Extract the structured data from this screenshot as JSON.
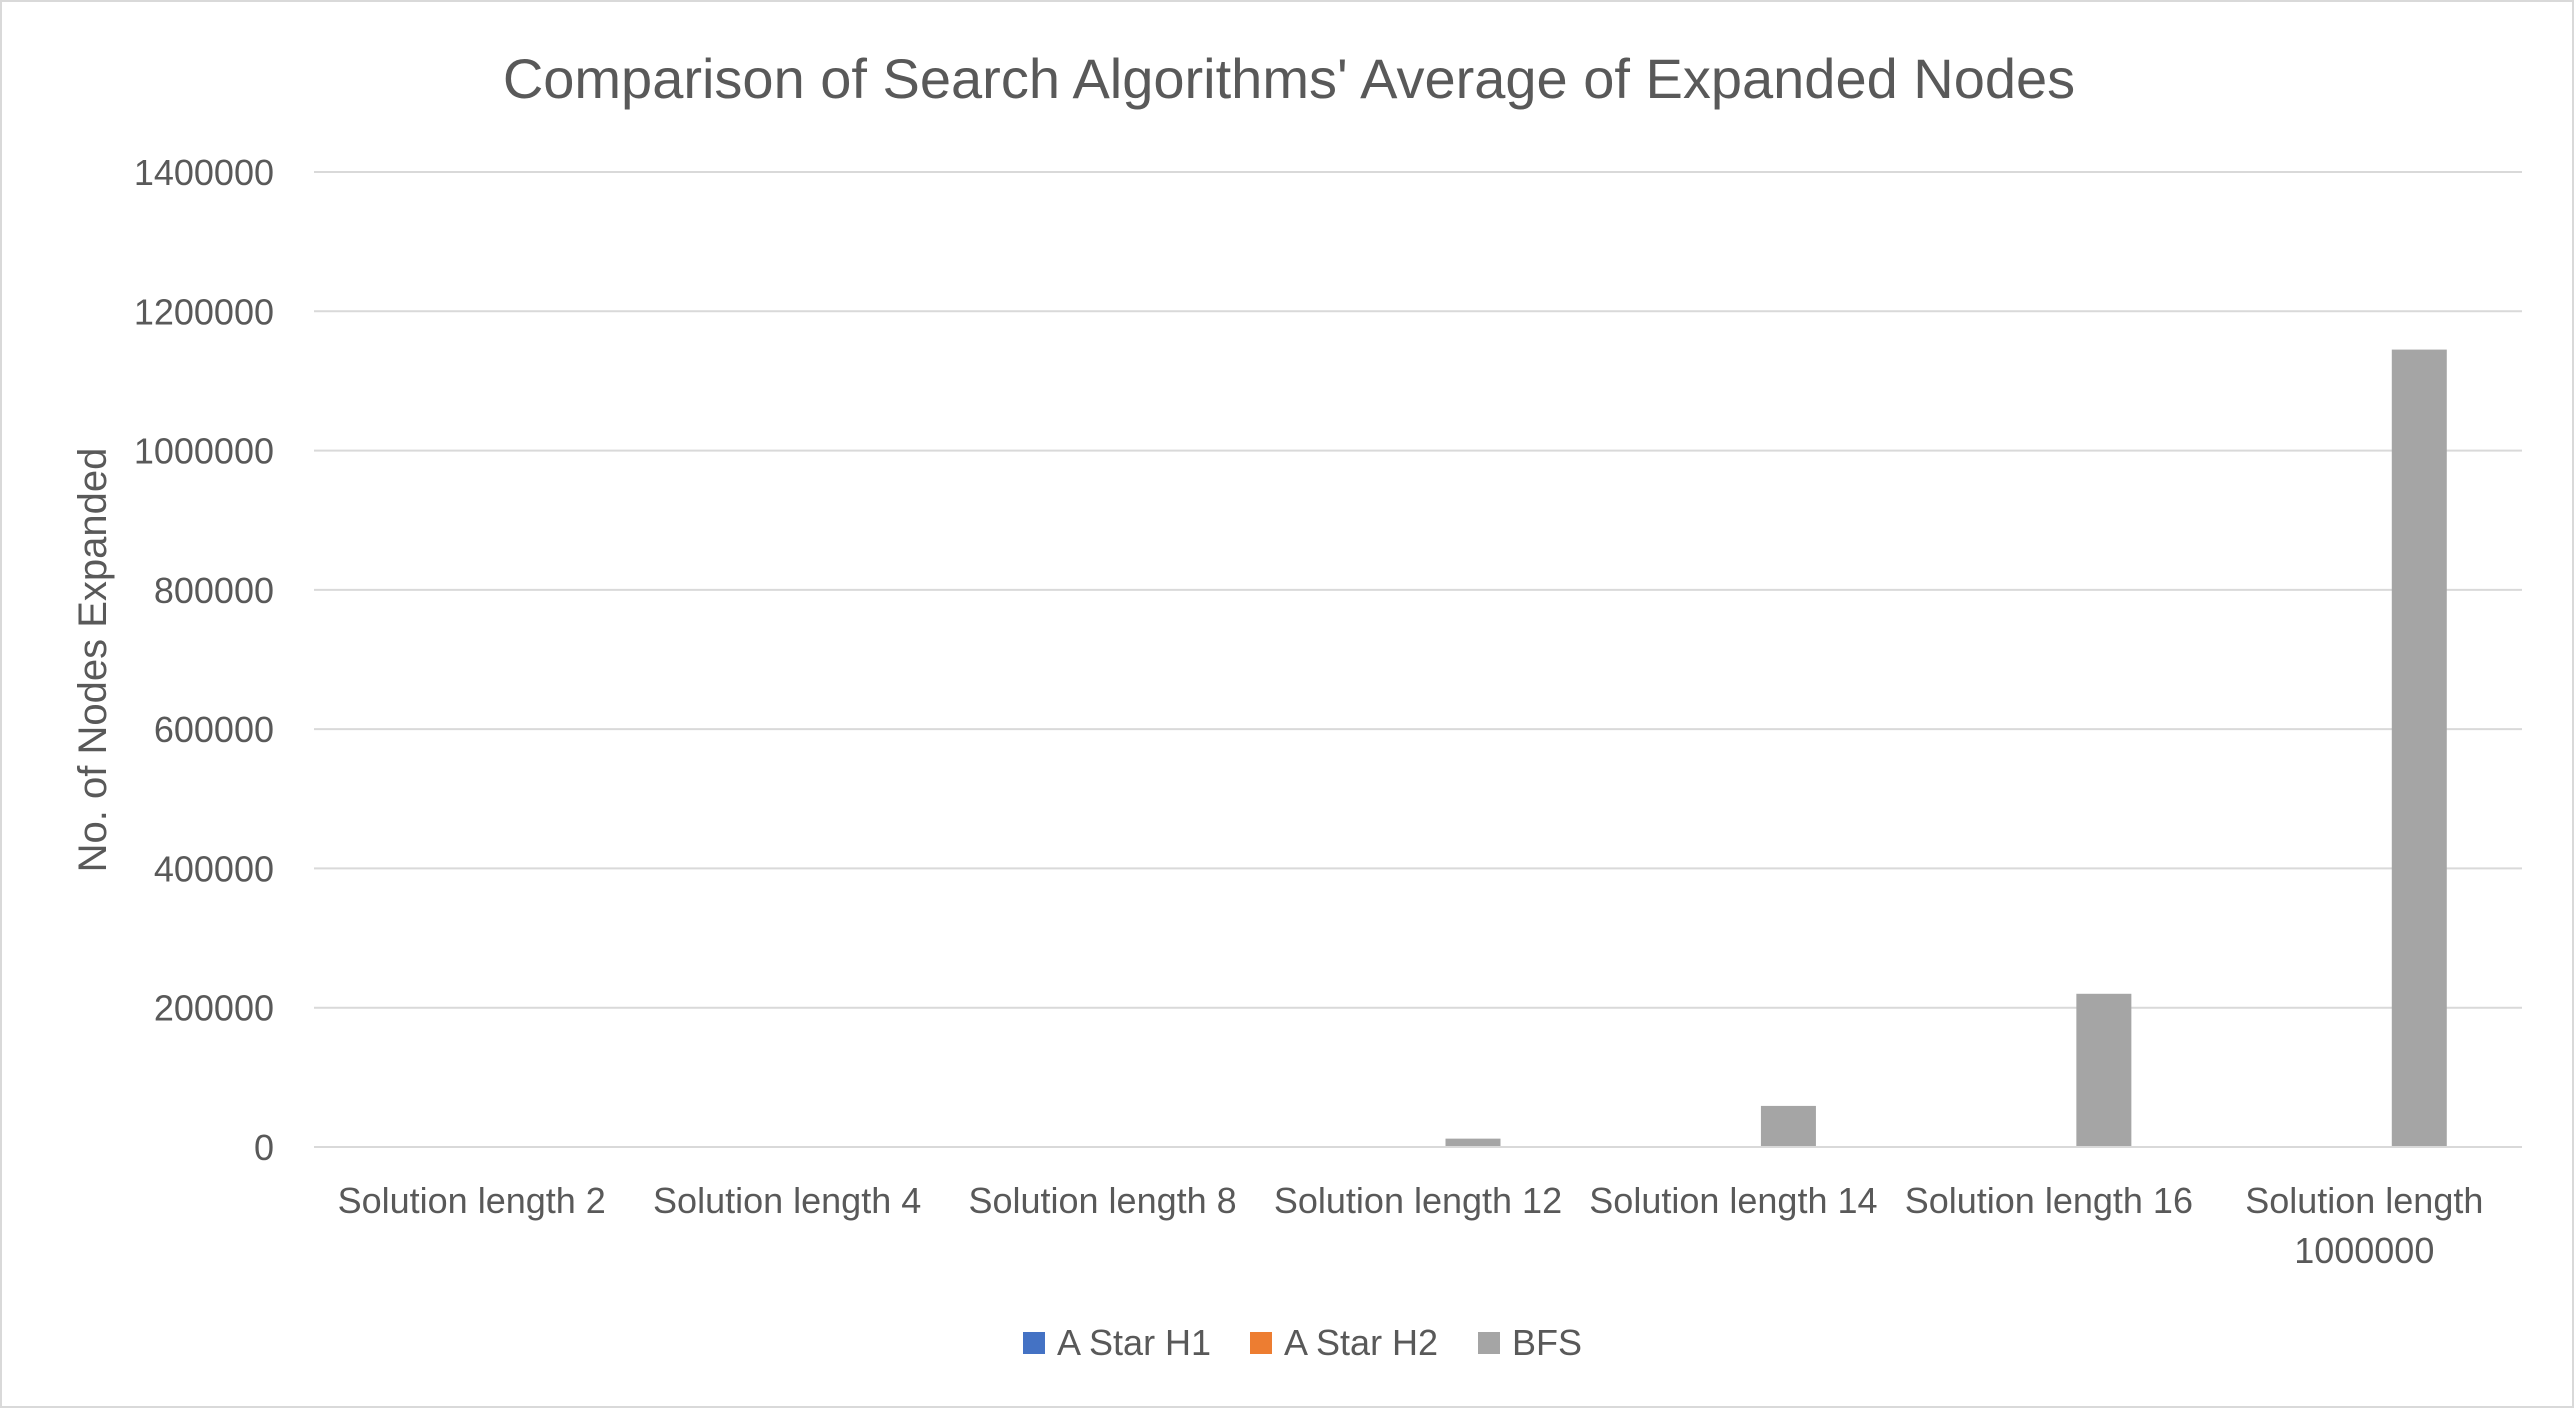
{
  "chart_data": {
    "type": "bar",
    "title": "Comparison of Search Algorithms' Average of Expanded Nodes",
    "xlabel": "",
    "ylabel": "No. of Nodes Expanded",
    "categories": [
      [
        "Solution length 2"
      ],
      [
        "Solution length 4"
      ],
      [
        "Solution length 8"
      ],
      [
        "Solution length 12"
      ],
      [
        "Solution length 14"
      ],
      [
        "Solution length 16"
      ],
      [
        "Solution length",
        "1000000"
      ]
    ],
    "series": [
      {
        "name": "A Star H1",
        "color": "#4472c4",
        "values": [
          0,
          0,
          0,
          0,
          0,
          0,
          0
        ]
      },
      {
        "name": "A Star H2",
        "color": "#ed7d31",
        "values": [
          0,
          0,
          0,
          0,
          0,
          0,
          0
        ]
      },
      {
        "name": "BFS",
        "color": "#a5a5a5",
        "values": [
          0,
          0,
          0,
          12000,
          59000,
          220000,
          1145000
        ]
      }
    ],
    "ylim": [
      0,
      1400000
    ],
    "yticks": [
      0,
      200000,
      400000,
      600000,
      800000,
      1000000,
      1200000,
      1400000
    ],
    "ytick_labels": [
      "0",
      "200000",
      "400000",
      "600000",
      "800000",
      "1000000",
      "1200000",
      "1400000"
    ],
    "grid": true,
    "legend_position": "bottom"
  }
}
